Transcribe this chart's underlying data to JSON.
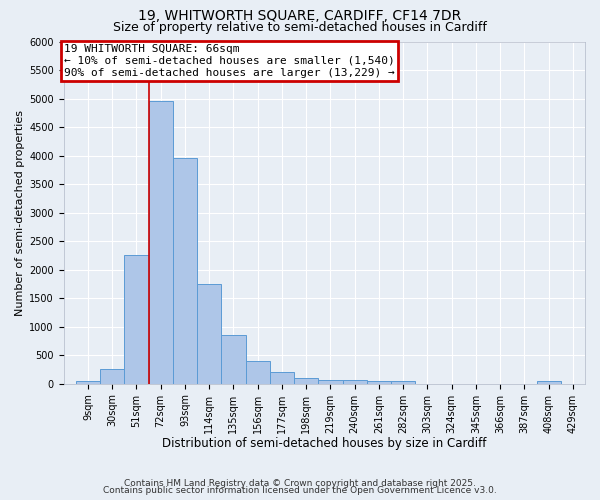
{
  "title1": "19, WHITWORTH SQUARE, CARDIFF, CF14 7DR",
  "title2": "Size of property relative to semi-detached houses in Cardiff",
  "xlabel": "Distribution of semi-detached houses by size in Cardiff",
  "ylabel": "Number of semi-detached properties",
  "bin_labels": [
    "9sqm",
    "30sqm",
    "51sqm",
    "72sqm",
    "93sqm",
    "114sqm",
    "135sqm",
    "156sqm",
    "177sqm",
    "198sqm",
    "219sqm",
    "240sqm",
    "261sqm",
    "282sqm",
    "303sqm",
    "324sqm",
    "345sqm",
    "366sqm",
    "387sqm",
    "408sqm",
    "429sqm"
  ],
  "bin_edges": [
    9,
    30,
    51,
    72,
    93,
    114,
    135,
    156,
    177,
    198,
    219,
    240,
    261,
    282,
    303,
    324,
    345,
    366,
    387,
    408,
    429
  ],
  "bar_heights": [
    50,
    250,
    2250,
    4950,
    3950,
    1750,
    850,
    400,
    200,
    100,
    70,
    60,
    50,
    50,
    0,
    0,
    0,
    0,
    0,
    50
  ],
  "bar_color": "#aec6e8",
  "bar_edge_color": "#5b9bd5",
  "property_size": 66,
  "red_line_x": 72,
  "ylim": [
    0,
    6000
  ],
  "yticks": [
    0,
    500,
    1000,
    1500,
    2000,
    2500,
    3000,
    3500,
    4000,
    4500,
    5000,
    5500,
    6000
  ],
  "annotation_line1": "19 WHITWORTH SQUARE: 66sqm",
  "annotation_line2": "← 10% of semi-detached houses are smaller (1,540)",
  "annotation_line3": "90% of semi-detached houses are larger (13,229) →",
  "annotation_box_color": "#ffffff",
  "annotation_box_edge_color": "#cc0000",
  "footer1": "Contains HM Land Registry data © Crown copyright and database right 2025.",
  "footer2": "Contains public sector information licensed under the Open Government Licence v3.0.",
  "background_color": "#e8eef5",
  "grid_color": "#ffffff",
  "title1_fontsize": 10,
  "title2_fontsize": 9,
  "ylabel_fontsize": 8,
  "xlabel_fontsize": 8.5,
  "tick_fontsize": 7,
  "footer_fontsize": 6.5,
  "annotation_fontsize": 8
}
